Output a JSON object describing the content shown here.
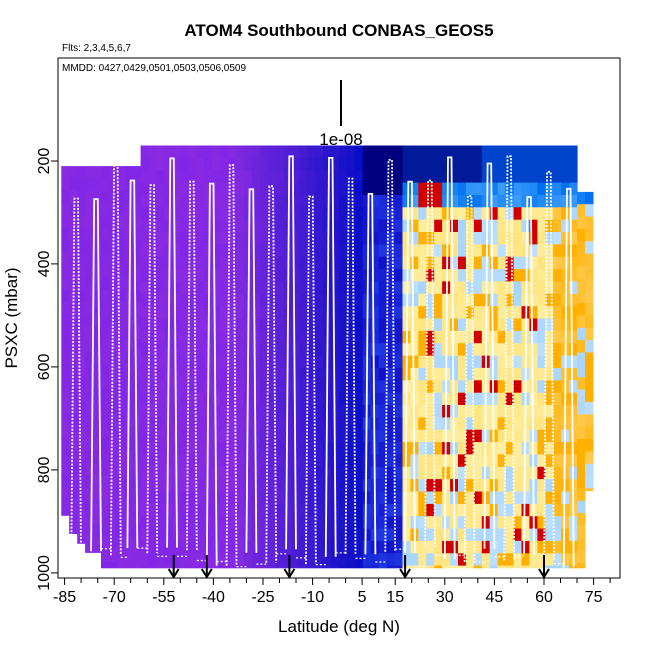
{
  "chart_data": {
    "type": "heatmap",
    "title": "ATOM4 Southbound CONBAS_GEOS5",
    "flights_label": "Flts: 2,3,4,5,6,7",
    "dates_label": "MMDD: 0427,0429,0501,0503,0506,0509",
    "xlabel": "Latitude (deg N)",
    "ylabel": "PSXC (mbar)",
    "xlim": [
      -87,
      83
    ],
    "ylim": [
      1010,
      0
    ],
    "x_ticks": [
      -85,
      -70,
      -55,
      -40,
      -25,
      -10,
      5,
      15,
      30,
      45,
      60,
      75
    ],
    "x_tick_labels": [
      "-85",
      "-70",
      "-55",
      "-40",
      "-25",
      "-10",
      "5",
      "15",
      "30",
      "45",
      "60",
      "75"
    ],
    "x_minor_ticks": [
      -80,
      -75,
      -65,
      -60,
      -50,
      -45,
      -35,
      -30,
      -20,
      -15,
      -5,
      0,
      10,
      20,
      25,
      35,
      40,
      50,
      55,
      65,
      70,
      80
    ],
    "y_ticks": [
      200,
      400,
      600,
      800,
      1000
    ],
    "y_tick_labels": [
      "200",
      "400",
      "600",
      "800",
      "1000"
    ],
    "scale_label": "1e-08",
    "arrow_latitudes": [
      -52,
      -42,
      -17,
      18,
      60
    ],
    "flight_profile_turns": [
      -83,
      -80,
      -77,
      -74,
      -71,
      -68,
      -66,
      -63,
      -60,
      -57,
      -54,
      -51,
      -48,
      -45,
      -42,
      -39,
      -36,
      -33,
      -30,
      -27,
      -24,
      -21,
      -18,
      -15,
      -12,
      -9,
      -6,
      -3,
      0,
      3,
      6,
      9,
      12,
      15,
      18,
      21,
      24,
      27,
      30,
      33,
      36,
      39,
      42,
      45,
      48,
      51,
      54,
      57,
      60,
      63,
      66,
      69
    ],
    "colors": {
      "purple": "#8a2be2",
      "blue": "#1010c8",
      "navy": "#000080",
      "light_blue": "#bde0ff",
      "pale_yellow": "#fff3b0",
      "orange": "#ffb000",
      "red": "#d00000",
      "profile": "#ffffff"
    }
  }
}
